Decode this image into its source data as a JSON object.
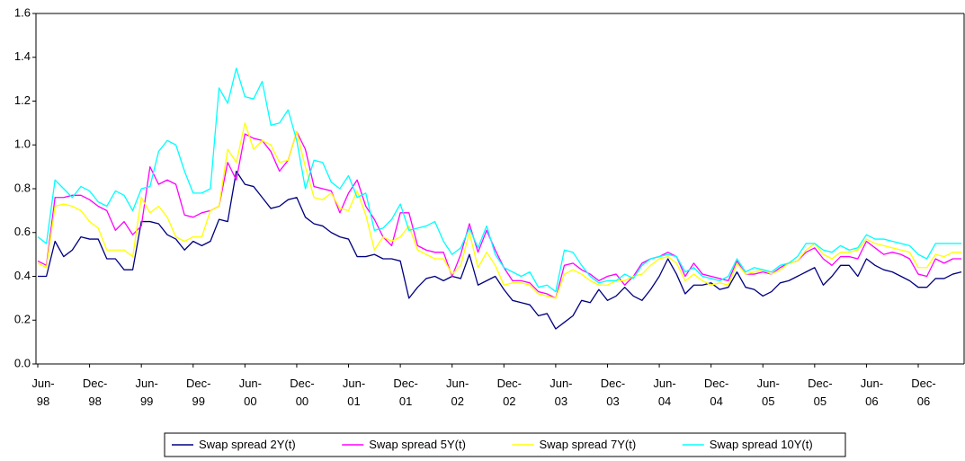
{
  "chart_data": {
    "type": "line",
    "categories": [
      "Jun-98",
      null,
      null,
      null,
      null,
      null,
      "Dec-98",
      null,
      null,
      null,
      null,
      null,
      "Jun-99",
      null,
      null,
      null,
      null,
      null,
      "Dec-99",
      null,
      null,
      null,
      null,
      null,
      "Jun-00",
      null,
      null,
      null,
      null,
      null,
      "Dec-00",
      null,
      null,
      null,
      null,
      null,
      "Jun-01",
      null,
      null,
      null,
      null,
      null,
      "Dec-01",
      null,
      null,
      null,
      null,
      null,
      "Jun-02",
      null,
      null,
      null,
      null,
      null,
      "Dec-02",
      null,
      null,
      null,
      null,
      null,
      "Jun-03",
      null,
      null,
      null,
      null,
      null,
      "Dec-03",
      null,
      null,
      null,
      null,
      null,
      "Jun-04",
      null,
      null,
      null,
      null,
      null,
      "Dec-04",
      null,
      null,
      null,
      null,
      null,
      "Jun-05",
      null,
      null,
      null,
      null,
      null,
      "Dec-05",
      null,
      null,
      null,
      null,
      null,
      "Jun-06",
      null,
      null,
      null,
      null,
      null,
      "Dec-06",
      null,
      null,
      null,
      null,
      null
    ],
    "series": [
      {
        "name": "Swap spread 2Y(t)",
        "color": "#000080",
        "values": [
          0.4,
          0.4,
          0.56,
          0.49,
          0.52,
          0.58,
          0.57,
          0.57,
          0.48,
          0.48,
          0.43,
          0.43,
          0.65,
          0.65,
          0.64,
          0.59,
          0.57,
          0.52,
          0.56,
          0.54,
          0.56,
          0.66,
          0.65,
          0.88,
          0.82,
          0.81,
          0.76,
          0.71,
          0.72,
          0.75,
          0.76,
          0.67,
          0.64,
          0.63,
          0.6,
          0.58,
          0.57,
          0.49,
          0.49,
          0.5,
          0.48,
          0.48,
          0.47,
          0.3,
          0.35,
          0.39,
          0.4,
          0.38,
          0.4,
          0.39,
          0.5,
          0.36,
          0.38,
          0.4,
          0.34,
          0.29,
          0.28,
          0.27,
          0.22,
          0.23,
          0.16,
          0.19,
          0.22,
          0.29,
          0.28,
          0.34,
          0.29,
          0.31,
          0.35,
          0.31,
          0.29,
          0.34,
          0.4,
          0.48,
          0.41,
          0.32,
          0.36,
          0.36,
          0.37,
          0.34,
          0.35,
          0.42,
          0.35,
          0.34,
          0.31,
          0.33,
          0.37,
          0.38,
          0.4,
          0.42,
          0.44,
          0.36,
          0.4,
          0.45,
          0.45,
          0.4,
          0.48,
          0.45,
          0.43,
          0.42,
          0.4,
          0.38,
          0.35,
          0.35,
          0.39,
          0.39,
          0.41,
          0.42
        ]
      },
      {
        "name": "Swap spread 5Y(t)",
        "color": "#ff00ff",
        "values": [
          0.47,
          0.45,
          0.76,
          0.76,
          0.77,
          0.77,
          0.75,
          0.72,
          0.7,
          0.61,
          0.65,
          0.59,
          0.63,
          0.9,
          0.82,
          0.84,
          0.82,
          0.68,
          0.67,
          0.69,
          0.7,
          0.72,
          0.92,
          0.84,
          1.05,
          1.03,
          1.02,
          0.97,
          0.88,
          0.93,
          1.06,
          0.98,
          0.81,
          0.8,
          0.79,
          0.69,
          0.78,
          0.84,
          0.72,
          0.66,
          0.58,
          0.54,
          0.69,
          0.69,
          0.54,
          0.52,
          0.51,
          0.51,
          0.4,
          0.5,
          0.64,
          0.51,
          0.61,
          0.52,
          0.44,
          0.38,
          0.38,
          0.37,
          0.33,
          0.32,
          0.3,
          0.45,
          0.46,
          0.43,
          0.41,
          0.38,
          0.4,
          0.41,
          0.36,
          0.4,
          0.46,
          0.48,
          0.49,
          0.51,
          0.49,
          0.4,
          0.46,
          0.41,
          0.4,
          0.39,
          0.38,
          0.47,
          0.41,
          0.41,
          0.42,
          0.41,
          0.44,
          0.46,
          0.47,
          0.51,
          0.53,
          0.48,
          0.45,
          0.49,
          0.49,
          0.48,
          0.56,
          0.53,
          0.5,
          0.51,
          0.5,
          0.48,
          0.41,
          0.4,
          0.48,
          0.46,
          0.48,
          0.48
        ]
      },
      {
        "name": "Swap spread 7Y(t)",
        "color": "#ffff00",
        "values": [
          0.46,
          0.44,
          0.72,
          0.73,
          0.72,
          0.7,
          0.65,
          0.62,
          0.52,
          0.52,
          0.52,
          0.49,
          0.76,
          0.69,
          0.72,
          0.67,
          0.58,
          0.56,
          0.58,
          0.58,
          0.7,
          0.72,
          0.98,
          0.92,
          1.1,
          0.98,
          1.02,
          1.0,
          0.92,
          0.93,
          1.06,
          0.9,
          0.76,
          0.75,
          0.78,
          0.71,
          0.7,
          0.79,
          0.68,
          0.52,
          0.58,
          0.56,
          0.58,
          0.63,
          0.52,
          0.5,
          0.48,
          0.48,
          0.41,
          0.45,
          0.6,
          0.44,
          0.51,
          0.45,
          0.36,
          0.37,
          0.37,
          0.36,
          0.32,
          0.31,
          0.3,
          0.41,
          0.43,
          0.41,
          0.38,
          0.36,
          0.36,
          0.38,
          0.38,
          0.4,
          0.41,
          0.45,
          0.48,
          0.49,
          0.46,
          0.38,
          0.41,
          0.38,
          0.36,
          0.37,
          0.36,
          0.46,
          0.41,
          0.42,
          0.43,
          0.41,
          0.43,
          0.46,
          0.47,
          0.52,
          0.55,
          0.5,
          0.48,
          0.51,
          0.51,
          0.52,
          0.57,
          0.55,
          0.54,
          0.53,
          0.52,
          0.51,
          0.44,
          0.44,
          0.5,
          0.49,
          0.51,
          0.51
        ]
      },
      {
        "name": "Swap spread 10Y(t)",
        "color": "#00ffff",
        "values": [
          0.58,
          0.55,
          0.84,
          0.8,
          0.76,
          0.81,
          0.79,
          0.74,
          0.72,
          0.79,
          0.77,
          0.7,
          0.8,
          0.81,
          0.97,
          1.02,
          1.0,
          0.88,
          0.78,
          0.78,
          0.8,
          1.26,
          1.19,
          1.35,
          1.22,
          1.21,
          1.29,
          1.09,
          1.1,
          1.16,
          1.02,
          0.8,
          0.93,
          0.92,
          0.83,
          0.8,
          0.86,
          0.76,
          0.78,
          0.61,
          0.62,
          0.66,
          0.73,
          0.61,
          0.62,
          0.63,
          0.65,
          0.56,
          0.5,
          0.53,
          0.62,
          0.53,
          0.63,
          0.5,
          0.44,
          0.42,
          0.4,
          0.42,
          0.35,
          0.36,
          0.33,
          0.52,
          0.51,
          0.45,
          0.4,
          0.37,
          0.38,
          0.38,
          0.41,
          0.39,
          0.45,
          0.48,
          0.49,
          0.5,
          0.49,
          0.42,
          0.44,
          0.4,
          0.39,
          0.38,
          0.4,
          0.48,
          0.42,
          0.44,
          0.43,
          0.42,
          0.45,
          0.46,
          0.49,
          0.55,
          0.55,
          0.52,
          0.51,
          0.54,
          0.52,
          0.53,
          0.59,
          0.57,
          0.57,
          0.56,
          0.55,
          0.54,
          0.5,
          0.48,
          0.55,
          0.55,
          0.55,
          0.55
        ]
      }
    ],
    "ylim": [
      0,
      1.6
    ],
    "yticks": [
      {
        "value": 0,
        "label": "0.0"
      },
      0.2,
      0.4,
      0.6,
      0.8,
      {
        "value": 1,
        "label": "1.0"
      },
      1.2,
      1.4,
      1.6
    ],
    "grid": false,
    "legend": "bottom"
  }
}
